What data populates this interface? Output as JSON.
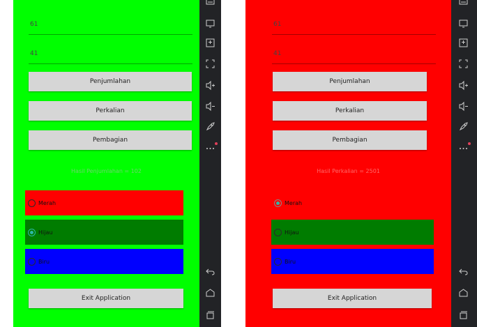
{
  "panels": [
    {
      "background": "#00ff00",
      "input1": "61",
      "input2": "41",
      "buttons": [
        "Penjumlahan",
        "Perkalian",
        "Pembagian"
      ],
      "result": "Hasil Penjumlahan = 102",
      "result_color": "#6fd46f",
      "radios": [
        {
          "label": "Merah",
          "color": "#ff0000",
          "checked": false
        },
        {
          "label": "Hijau",
          "color": "#007c00",
          "checked": true
        },
        {
          "label": "Biru",
          "color": "#0000ff",
          "checked": false
        }
      ],
      "exit": "Exit Application"
    },
    {
      "background": "#ff0000",
      "input1": "61",
      "input2": "41",
      "buttons": [
        "Penjumlahan",
        "Perkalian",
        "Pembagian"
      ],
      "result": "Hasil Perkalian = 2501",
      "result_color": "#ff6a6a",
      "radios": [
        {
          "label": "Merah",
          "color": "#ff0000",
          "checked": true
        },
        {
          "label": "Hijau",
          "color": "#007c00",
          "checked": false
        },
        {
          "label": "Biru",
          "color": "#0000ff",
          "checked": false
        }
      ],
      "exit": "Exit Application"
    }
  ],
  "toolbar_icons": [
    "keyboard-icon",
    "screen-icon",
    "screenshot-icon",
    "fullscreen-icon",
    "volume-up-icon",
    "volume-down-icon",
    "rocket-icon",
    "more-icon",
    "back-icon",
    "home-icon",
    "recents-icon"
  ]
}
